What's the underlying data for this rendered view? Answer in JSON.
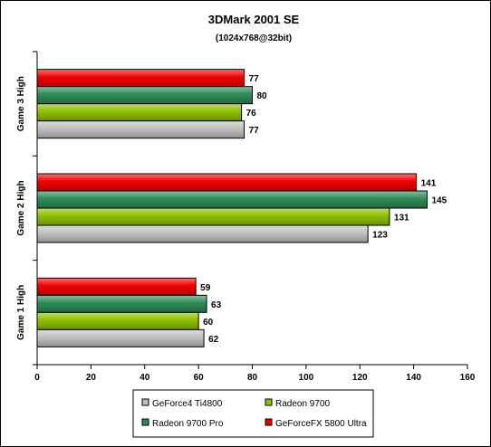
{
  "chart_data": {
    "type": "bar",
    "orientation": "horizontal",
    "title": "3DMark 2001 SE",
    "subtitle": "(1024x768@32bit)",
    "categories": [
      "Game 3 High",
      "Game 2 High",
      "Game 1 High"
    ],
    "series": [
      {
        "name": "GeForceFX 5800 Ultra",
        "color": "#ee0000",
        "values": [
          77,
          141,
          59
        ]
      },
      {
        "name": "Radeon 9700 Pro",
        "color": "#2e8b57",
        "values": [
          80,
          145,
          63
        ]
      },
      {
        "name": "Radeon 9700",
        "color": "#8fbf00",
        "values": [
          76,
          131,
          60
        ]
      },
      {
        "name": "GeForce4 Ti4800",
        "color": "#c0c0c0",
        "values": [
          77,
          123,
          62
        ]
      }
    ],
    "xlim": [
      0,
      160
    ],
    "xticks": [
      0,
      20,
      40,
      60,
      80,
      100,
      120,
      140,
      160
    ],
    "xlabel": "",
    "ylabel": "",
    "grid": false,
    "legend": {
      "position": "bottom",
      "entries": [
        "GeForce4 Ti4800",
        "Radeon 9700",
        "Radeon 9700 Pro",
        "GeForceFX 5800 Ultra"
      ]
    }
  }
}
